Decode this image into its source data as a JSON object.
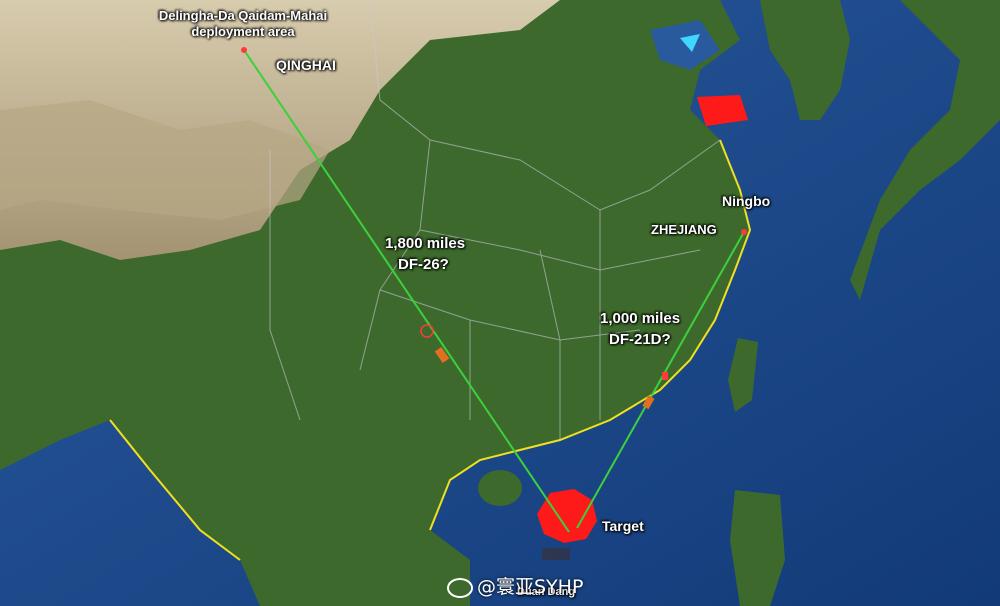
{
  "map": {
    "deployment_label": [
      "Delingha-Da Qaidam-Mahai",
      "deployment area"
    ],
    "province_qinghai": "QINGHAI",
    "province_zhejiang": "ZHEJIANG",
    "city_ningbo": "Ningbo",
    "range_1_distance": "1,800 miles",
    "range_1_missile": "DF-26?",
    "range_2_distance": "1,000 miles",
    "range_2_missile": "DF-21D?",
    "target_label": "Target",
    "island_label": "Duan Dang",
    "watermark": "@寰亚SYHP",
    "colors": {
      "ocean": "#1e4a8c",
      "land_west": "#c9bfa3",
      "land_green": "#3f6a2e",
      "trajectory": "#3cd03c",
      "target_zone": "#ff1a1a",
      "coastline": "#f0e020"
    }
  }
}
